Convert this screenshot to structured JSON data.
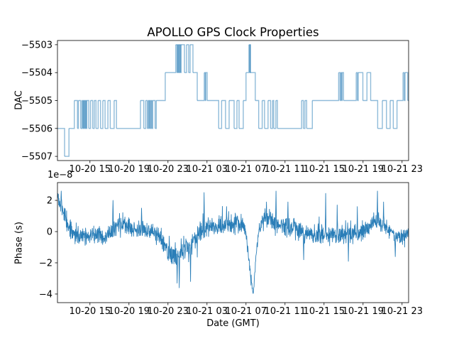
{
  "title": "APOLLO GPS Clock Properties",
  "chart_data": [
    {
      "type": "line",
      "subplot": "top",
      "ylabel": "DAC",
      "legend": "none",
      "grid": false,
      "line_color": "#1f77b4",
      "line_opacity": 0.5,
      "line_width": 1.4,
      "step_mode": true,
      "xlim_hours": [
        11.67,
        47.67
      ],
      "xticks_hours": [
        15,
        19,
        23,
        27,
        31,
        35,
        39,
        43,
        47
      ],
      "xtick_labels": [
        "10-20 15",
        "10-20 19",
        "10-20 23",
        "10-21 03",
        "10-21 07",
        "10-21 11",
        "10-21 15",
        "10-21 19",
        "10-21 23"
      ],
      "ylim": [
        -5507.15,
        -5502.85
      ],
      "yticks": [
        -5503,
        -5504,
        -5505,
        -5506,
        -5507
      ],
      "ytick_labels": [
        "−5503",
        "−5504",
        "−5505",
        "−5506",
        "−5507"
      ],
      "steps": [
        [
          11.67,
          -5506
        ],
        [
          12.4,
          -5507
        ],
        [
          12.85,
          -5506
        ],
        [
          13.4,
          -5505
        ],
        [
          13.72,
          -5506
        ],
        [
          13.82,
          -5505
        ],
        [
          14.05,
          -5506
        ],
        [
          14.18,
          -5505
        ],
        [
          14.26,
          -5506
        ],
        [
          14.32,
          -5505
        ],
        [
          14.38,
          -5506
        ],
        [
          14.44,
          -5505
        ],
        [
          14.5,
          -5506
        ],
        [
          14.56,
          -5505
        ],
        [
          14.62,
          -5506
        ],
        [
          14.68,
          -5505
        ],
        [
          14.88,
          -5506
        ],
        [
          15.06,
          -5505
        ],
        [
          15.28,
          -5506
        ],
        [
          15.44,
          -5505
        ],
        [
          15.62,
          -5506
        ],
        [
          15.84,
          -5505
        ],
        [
          16.08,
          -5506
        ],
        [
          16.32,
          -5505
        ],
        [
          16.55,
          -5506
        ],
        [
          16.84,
          -5505
        ],
        [
          17.08,
          -5506
        ],
        [
          17.48,
          -5505
        ],
        [
          17.72,
          -5506
        ],
        [
          20.18,
          -5505
        ],
        [
          20.52,
          -5506
        ],
        [
          20.72,
          -5505
        ],
        [
          20.88,
          -5506
        ],
        [
          20.98,
          -5505
        ],
        [
          21.06,
          -5506
        ],
        [
          21.12,
          -5505
        ],
        [
          21.2,
          -5506
        ],
        [
          21.28,
          -5505
        ],
        [
          21.36,
          -5506
        ],
        [
          21.44,
          -5505
        ],
        [
          21.68,
          -5506
        ],
        [
          21.8,
          -5505
        ],
        [
          22.72,
          -5504
        ],
        [
          23.8,
          -5503
        ],
        [
          23.93,
          -5504
        ],
        [
          23.98,
          -5503
        ],
        [
          24.05,
          -5504
        ],
        [
          24.1,
          -5503
        ],
        [
          24.17,
          -5504
        ],
        [
          24.22,
          -5503
        ],
        [
          24.3,
          -5504
        ],
        [
          24.34,
          -5503
        ],
        [
          24.69,
          -5504
        ],
        [
          24.9,
          -5503
        ],
        [
          25.12,
          -5504
        ],
        [
          25.27,
          -5503
        ],
        [
          25.56,
          -5504
        ],
        [
          26.0,
          -5505
        ],
        [
          26.72,
          -5504
        ],
        [
          26.82,
          -5505
        ],
        [
          26.88,
          -5504
        ],
        [
          27.02,
          -5505
        ],
        [
          28.2,
          -5506
        ],
        [
          28.5,
          -5505
        ],
        [
          28.9,
          -5506
        ],
        [
          29.27,
          -5505
        ],
        [
          29.78,
          -5506
        ],
        [
          30.07,
          -5505
        ],
        [
          30.29,
          -5506
        ],
        [
          30.72,
          -5505
        ],
        [
          31.0,
          -5504
        ],
        [
          31.3,
          -5503
        ],
        [
          31.38,
          -5504
        ],
        [
          31.42,
          -5503
        ],
        [
          31.46,
          -5504
        ],
        [
          31.95,
          -5505
        ],
        [
          32.3,
          -5506
        ],
        [
          32.66,
          -5505
        ],
        [
          32.9,
          -5506
        ],
        [
          33.26,
          -5505
        ],
        [
          33.52,
          -5506
        ],
        [
          33.72,
          -5505
        ],
        [
          33.84,
          -5506
        ],
        [
          34.06,
          -5505
        ],
        [
          34.22,
          -5506
        ],
        [
          36.7,
          -5505
        ],
        [
          36.88,
          -5506
        ],
        [
          37.04,
          -5505
        ],
        [
          37.22,
          -5506
        ],
        [
          37.8,
          -5505
        ],
        [
          40.5,
          -5504
        ],
        [
          40.64,
          -5505
        ],
        [
          40.72,
          -5504
        ],
        [
          40.8,
          -5505
        ],
        [
          40.86,
          -5504
        ],
        [
          41.0,
          -5505
        ],
        [
          42.3,
          -5504
        ],
        [
          42.42,
          -5505
        ],
        [
          42.5,
          -5504
        ],
        [
          42.98,
          -5505
        ],
        [
          43.4,
          -5504
        ],
        [
          43.78,
          -5505
        ],
        [
          44.5,
          -5506
        ],
        [
          44.98,
          -5505
        ],
        [
          45.4,
          -5506
        ],
        [
          45.78,
          -5505
        ],
        [
          46.1,
          -5506
        ],
        [
          46.48,
          -5505
        ],
        [
          47.1,
          -5504
        ],
        [
          47.22,
          -5505
        ],
        [
          47.3,
          -5504
        ],
        [
          47.58,
          -5505
        ]
      ]
    },
    {
      "type": "line",
      "subplot": "bottom",
      "ylabel": "Phase (s)",
      "xlabel": "Date (GMT)",
      "offset_text": "1e−8",
      "legend": "none",
      "grid": false,
      "line_color": "#1f77b4",
      "line_opacity": 0.95,
      "line_width": 0.9,
      "xlim_hours": [
        11.67,
        47.67
      ],
      "xticks_hours": [
        15,
        19,
        23,
        27,
        31,
        35,
        39,
        43,
        47
      ],
      "xtick_labels": [
        "10-20 15",
        "10-20 19",
        "10-20 23",
        "10-21 03",
        "10-21 07",
        "10-21 11",
        "10-21 15",
        "10-21 19",
        "10-21 23"
      ],
      "ylim_1e8": [
        -4.55,
        3.14
      ],
      "yticks_1e8": [
        2,
        0,
        -2,
        -4
      ],
      "ytick_labels": [
        "2",
        "0",
        "−2",
        "−4"
      ],
      "series_model": {
        "n": 1500,
        "seed": 20211021,
        "units": "1e-8 s",
        "mean_keypoints": [
          [
            11.67,
            2.1
          ],
          [
            12.1,
            1.6
          ],
          [
            12.7,
            0.5
          ],
          [
            13.3,
            -0.1
          ],
          [
            14.3,
            -0.3
          ],
          [
            15.3,
            -0.1
          ],
          [
            16.3,
            -0.3
          ],
          [
            17.2,
            0.0
          ],
          [
            18.2,
            0.55
          ],
          [
            19.0,
            0.25
          ],
          [
            19.8,
            0.0
          ],
          [
            20.6,
            0.15
          ],
          [
            21.4,
            0.0
          ],
          [
            22.2,
            -0.3
          ],
          [
            23.1,
            -1.3
          ],
          [
            23.8,
            -1.6
          ],
          [
            24.4,
            -1.4
          ],
          [
            25.1,
            -0.9
          ],
          [
            25.9,
            -0.4
          ],
          [
            26.6,
            0.3
          ],
          [
            27.5,
            0.25
          ],
          [
            28.5,
            0.3
          ],
          [
            29.5,
            0.5
          ],
          [
            30.3,
            0.55
          ],
          [
            30.9,
            0.2
          ],
          [
            31.2,
            -1.2
          ],
          [
            31.55,
            -3.2
          ],
          [
            31.74,
            -4.05
          ],
          [
            32.0,
            -1.8
          ],
          [
            32.35,
            0.2
          ],
          [
            32.9,
            0.8
          ],
          [
            33.6,
            0.75
          ],
          [
            34.3,
            0.45
          ],
          [
            35.0,
            0.3
          ],
          [
            35.8,
            0.35
          ],
          [
            36.6,
            0.0
          ],
          [
            37.4,
            -0.2
          ],
          [
            38.2,
            -0.15
          ],
          [
            39.0,
            -0.25
          ],
          [
            39.8,
            -0.2
          ],
          [
            40.6,
            -0.15
          ],
          [
            41.4,
            -0.1
          ],
          [
            42.2,
            -0.2
          ],
          [
            43.0,
            0.0
          ],
          [
            43.8,
            0.5
          ],
          [
            44.4,
            0.65
          ],
          [
            45.0,
            0.4
          ],
          [
            45.7,
            0.1
          ],
          [
            46.4,
            -0.25
          ],
          [
            47.1,
            -0.3
          ],
          [
            47.67,
            -0.15
          ]
        ],
        "amp_keypoints": [
          [
            11.67,
            0.45
          ],
          [
            12.5,
            0.55
          ],
          [
            14.0,
            0.5
          ],
          [
            18.0,
            0.5
          ],
          [
            22.0,
            0.5
          ],
          [
            23.5,
            0.65
          ],
          [
            25.0,
            0.6
          ],
          [
            27.0,
            0.5
          ],
          [
            30.0,
            0.5
          ],
          [
            31.3,
            0.3
          ],
          [
            31.74,
            0.12
          ],
          [
            32.1,
            0.3
          ],
          [
            33.0,
            0.5
          ],
          [
            36.0,
            0.5
          ],
          [
            40.0,
            0.55
          ],
          [
            44.0,
            0.5
          ],
          [
            46.0,
            0.45
          ],
          [
            47.67,
            0.4
          ]
        ],
        "spikes": [
          [
            12.05,
            2.6
          ],
          [
            17.35,
            2.0
          ],
          [
            20.3,
            1.5
          ],
          [
            23.95,
            -3.3
          ],
          [
            24.15,
            -3.6
          ],
          [
            25.3,
            -3.2
          ],
          [
            26.7,
            2.5
          ],
          [
            29.0,
            1.6
          ],
          [
            33.1,
            1.9
          ],
          [
            34.07,
            2.6
          ],
          [
            35.3,
            1.9
          ],
          [
            36.9,
            -1.8
          ],
          [
            39.16,
            2.45
          ],
          [
            40.35,
            1.7
          ],
          [
            41.5,
            -1.9
          ],
          [
            42.4,
            1.6
          ],
          [
            44.47,
            2.6
          ],
          [
            45.1,
            1.9
          ],
          [
            46.3,
            -1.6
          ]
        ]
      }
    }
  ]
}
